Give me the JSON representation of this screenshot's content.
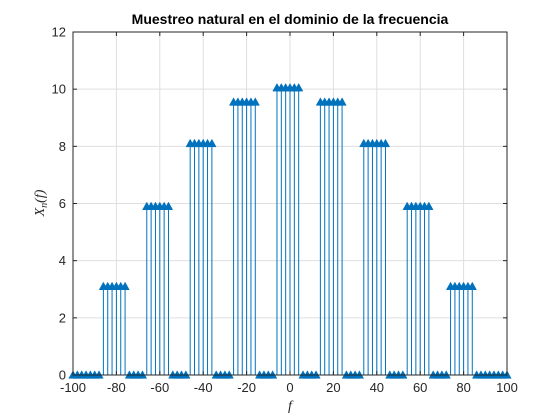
{
  "chart_data": {
    "type": "stem",
    "title": "Muestreo natural en el dominio de la frecuencia",
    "xlabel": "f",
    "ylabel": "X_n(f)",
    "ylabel_main": "X",
    "ylabel_sub": "n",
    "ylabel_arg": "(f)",
    "xlim": [
      -100,
      100
    ],
    "ylim": [
      0,
      12
    ],
    "xticks": [
      -100,
      -80,
      -60,
      -40,
      -20,
      0,
      20,
      40,
      60,
      80,
      100
    ],
    "yticks": [
      0,
      2,
      4,
      6,
      8,
      10,
      12
    ],
    "grid": true,
    "marker": "triangle",
    "color": "#0072BD",
    "x": [
      -100,
      -98,
      -96,
      -94,
      -92,
      -90,
      -88,
      -86,
      -84,
      -82,
      -80,
      -78,
      -76,
      -74,
      -72,
      -70,
      -68,
      -66,
      -64,
      -62,
      -60,
      -58,
      -56,
      -54,
      -52,
      -50,
      -48,
      -46,
      -44,
      -42,
      -40,
      -38,
      -36,
      -34,
      -32,
      -30,
      -28,
      -26,
      -24,
      -22,
      -20,
      -18,
      -16,
      -14,
      -12,
      -10,
      -8,
      -6,
      -4,
      -2,
      0,
      2,
      4,
      6,
      8,
      10,
      12,
      14,
      16,
      18,
      20,
      22,
      24,
      26,
      28,
      30,
      32,
      34,
      36,
      38,
      40,
      42,
      44,
      46,
      48,
      50,
      52,
      54,
      56,
      58,
      60,
      62,
      64,
      66,
      68,
      70,
      72,
      74,
      76,
      78,
      80,
      82,
      84,
      86,
      88,
      90,
      92,
      94,
      96,
      98,
      100
    ],
    "y": [
      0,
      0,
      0,
      0,
      0,
      0,
      0,
      3.1,
      3.1,
      3.1,
      3.1,
      3.1,
      3.1,
      0,
      0,
      0,
      0,
      5.9,
      5.9,
      5.9,
      5.9,
      5.9,
      5.9,
      0,
      0,
      0,
      0,
      8.1,
      8.1,
      8.1,
      8.1,
      8.1,
      8.1,
      0,
      0,
      0,
      0,
      9.55,
      9.55,
      9.55,
      9.55,
      9.55,
      9.55,
      0,
      0,
      0,
      0,
      10.05,
      10.05,
      10.05,
      10.05,
      10.05,
      10.05,
      0,
      0,
      0,
      0,
      9.55,
      9.55,
      9.55,
      9.55,
      9.55,
      9.55,
      0,
      0,
      0,
      0,
      8.1,
      8.1,
      8.1,
      8.1,
      8.1,
      8.1,
      0,
      0,
      0,
      0,
      5.9,
      5.9,
      5.9,
      5.9,
      5.9,
      5.9,
      0,
      0,
      0,
      0,
      3.1,
      3.1,
      3.1,
      3.1,
      3.1,
      3.1,
      0,
      0,
      0,
      0,
      0,
      0,
      0,
      0
    ]
  }
}
